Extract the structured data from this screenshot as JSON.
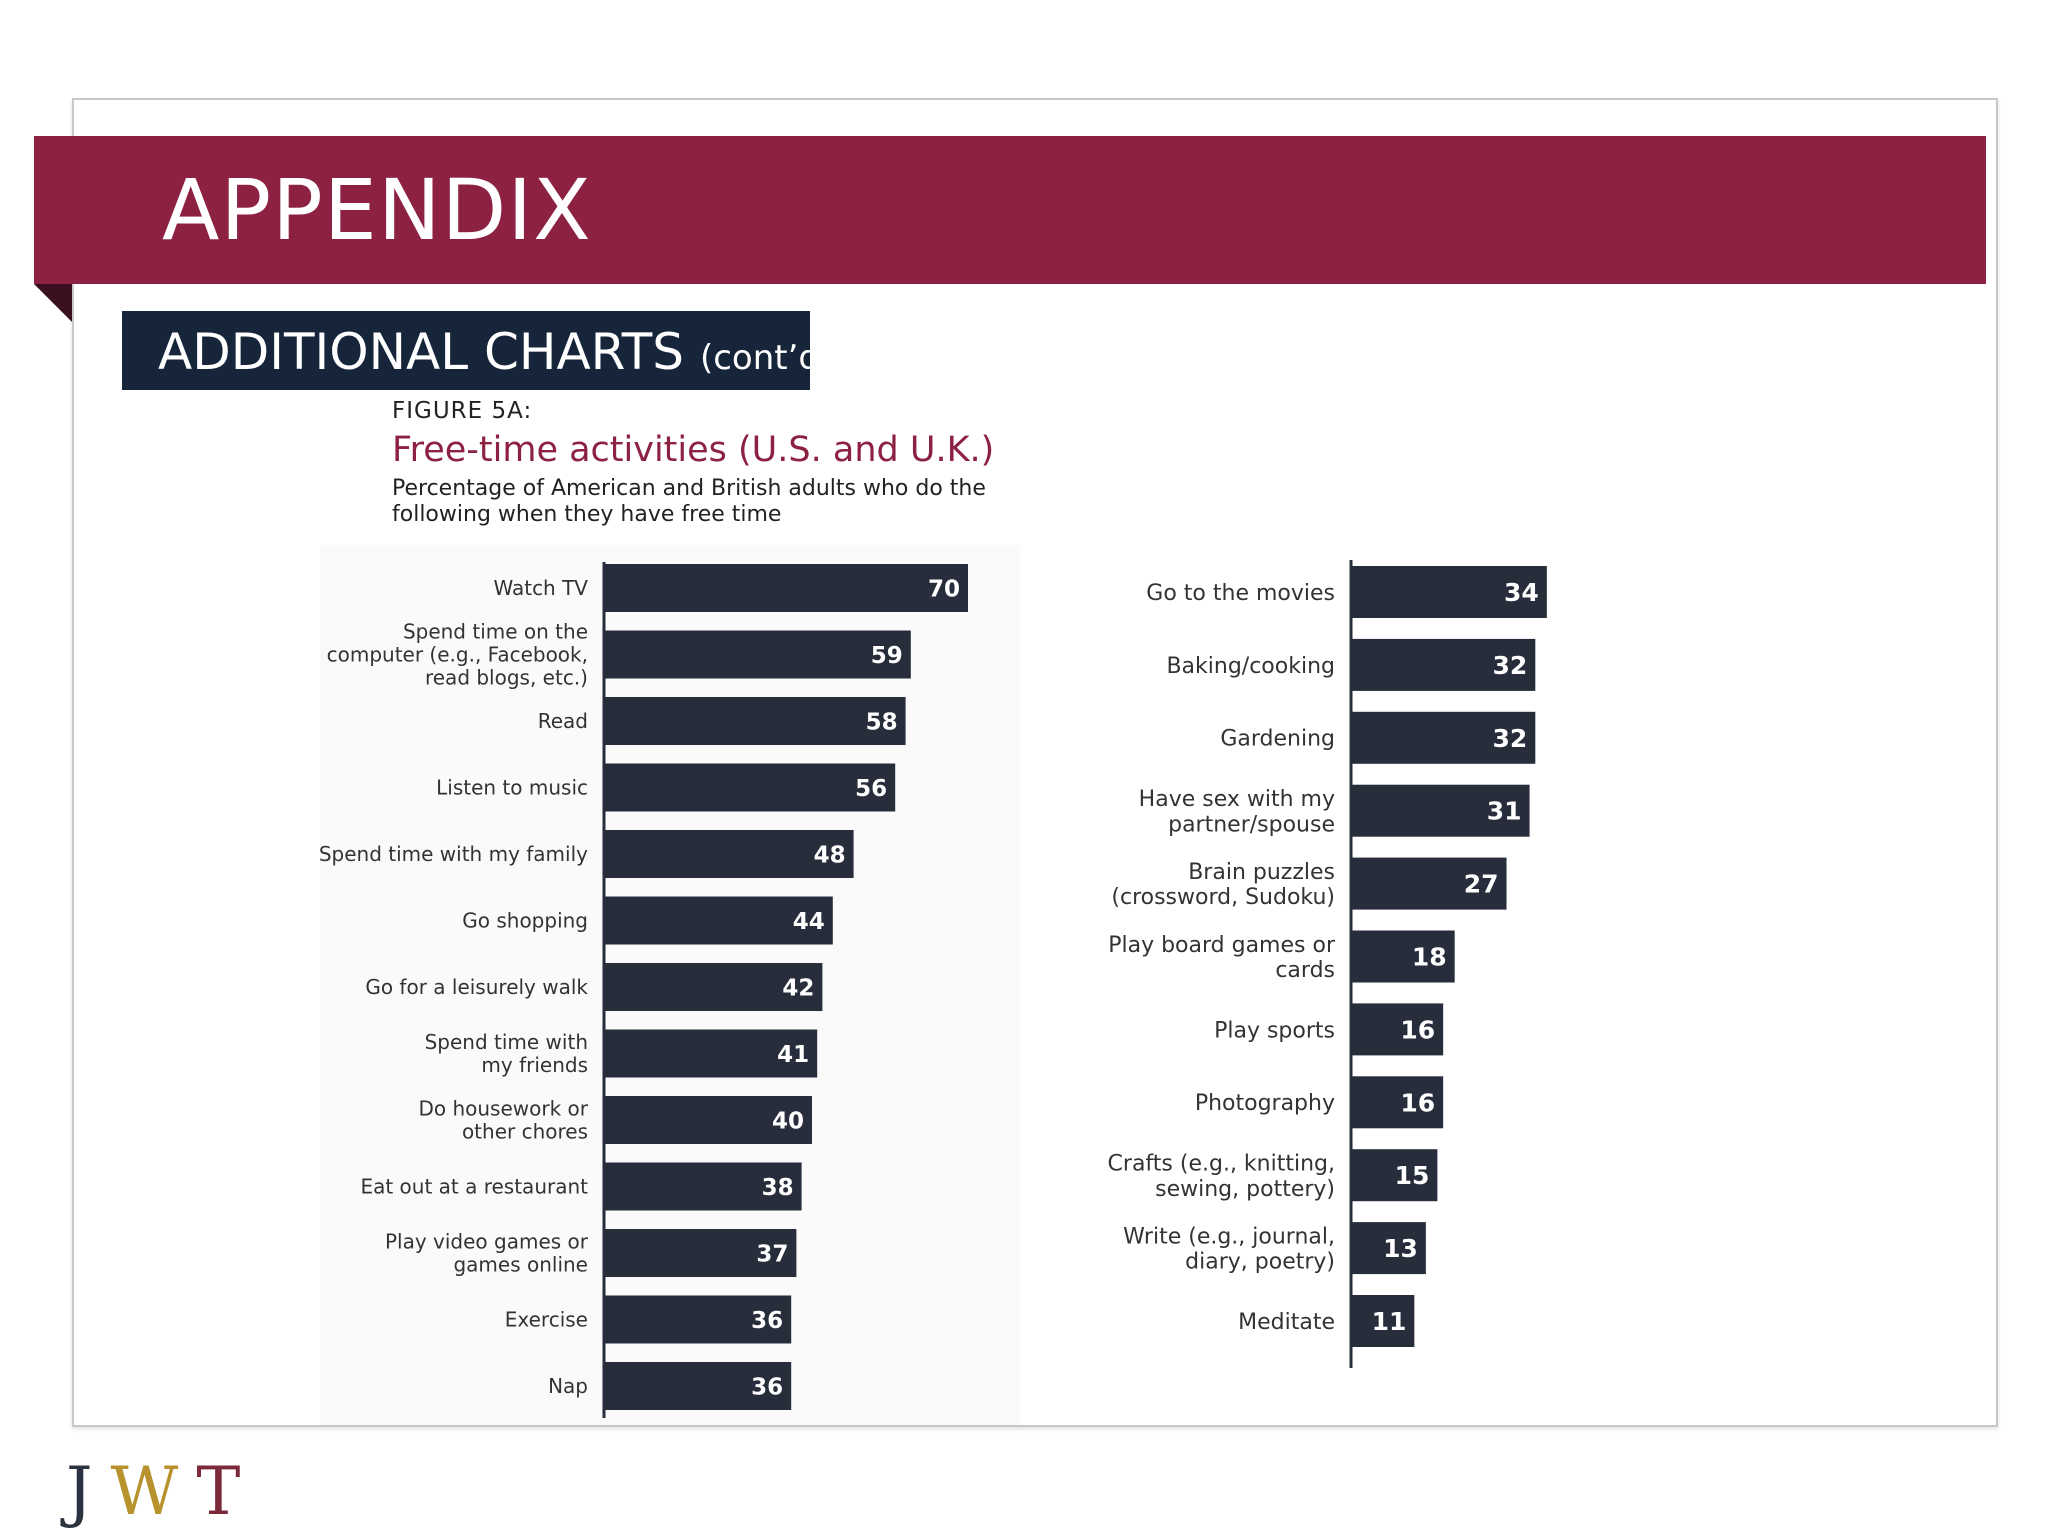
{
  "header": {
    "title": "APPENDIX",
    "subtitle": "ADDITIONAL CHARTS",
    "subtitle_suffix": "(cont’d.)"
  },
  "figure": {
    "label": "FIGURE 5A:",
    "title": "Free-time activities (U.S. and U.K.)",
    "description": "Percentage of American and British adults who do the following when they have free time"
  },
  "colors": {
    "bar": "#272d3b",
    "accent": "#8c2142",
    "text": "#333333"
  },
  "chart_data": [
    {
      "type": "bar",
      "orientation": "horizontal",
      "xlim": [
        0,
        100
      ],
      "categories": [
        "Watch TV",
        "Spend time on the computer (e.g., Facebook, read blogs, etc.)",
        "Read",
        "Listen to music",
        "Spend time with my family",
        "Go shopping",
        "Go for a leisurely walk",
        "Spend time with my friends",
        "Do housework or other chores",
        "Eat out at a restaurant",
        "Play video games or games online",
        "Exercise",
        "Nap"
      ],
      "label_lines": [
        [
          "Watch TV"
        ],
        [
          "Spend time on the",
          "computer (e.g., Facebook,",
          "read blogs, etc.)"
        ],
        [
          "Read"
        ],
        [
          "Listen to music"
        ],
        [
          "Spend time with my family"
        ],
        [
          "Go shopping"
        ],
        [
          "Go for a leisurely walk"
        ],
        [
          "Spend time with",
          "my friends"
        ],
        [
          "Do housework or",
          "other chores"
        ],
        [
          "Eat out at a restaurant"
        ],
        [
          "Play video games or",
          "games online"
        ],
        [
          "Exercise"
        ],
        [
          "Nap"
        ]
      ],
      "values": [
        70,
        59,
        58,
        56,
        48,
        44,
        42,
        41,
        40,
        38,
        37,
        36,
        36
      ]
    },
    {
      "type": "bar",
      "orientation": "horizontal",
      "xlim": [
        0,
        100
      ],
      "categories": [
        "Go to the movies",
        "Baking/cooking",
        "Gardening",
        "Have sex with my partner/spouse",
        "Brain puzzles (crossword, Sudoku)",
        "Play board games or cards",
        "Play sports",
        "Photography",
        "Crafts (e.g., knitting, sewing, pottery)",
        "Write (e.g., journal, diary, poetry)",
        "Meditate"
      ],
      "label_lines": [
        [
          "Go to the movies"
        ],
        [
          "Baking/cooking"
        ],
        [
          "Gardening"
        ],
        [
          "Have sex with my",
          "partner/spouse"
        ],
        [
          "Brain puzzles",
          "(crossword, Sudoku)"
        ],
        [
          "Play board games or",
          "cards"
        ],
        [
          "Play sports"
        ],
        [
          "Photography"
        ],
        [
          "Crafts (e.g., knitting,",
          "sewing, pottery)"
        ],
        [
          "Write (e.g., journal,",
          "diary, poetry)"
        ],
        [
          "Meditate"
        ]
      ],
      "values": [
        34,
        32,
        32,
        31,
        27,
        18,
        16,
        16,
        15,
        13,
        11
      ]
    }
  ]
}
